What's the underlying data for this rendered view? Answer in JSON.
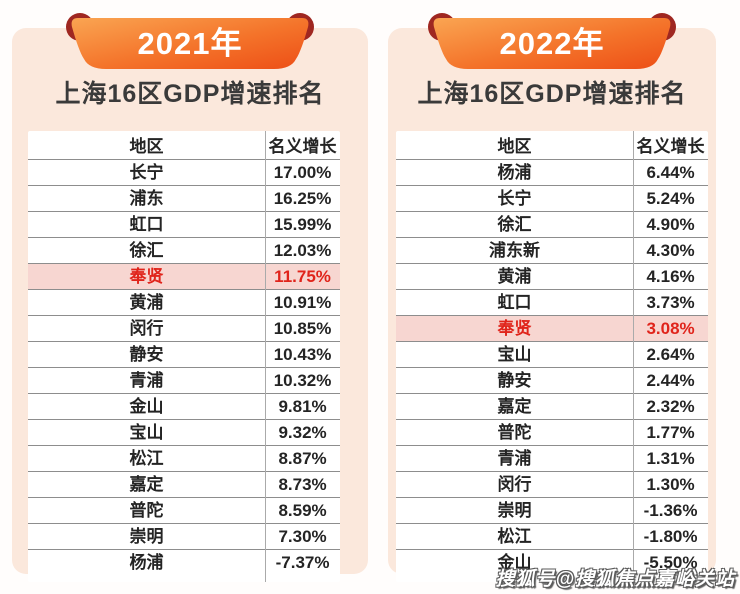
{
  "chart_data": [
    {
      "type": "table",
      "year_label": "2021年",
      "title": "上海16区GDP增速排名",
      "columns": [
        "地区",
        "名义增长"
      ],
      "rows": [
        [
          "长宁",
          "17.00%"
        ],
        [
          "浦东",
          "16.25%"
        ],
        [
          "虹口",
          "15.99%"
        ],
        [
          "徐汇",
          "12.03%"
        ],
        [
          "奉贤",
          "11.75%"
        ],
        [
          "黄浦",
          "10.91%"
        ],
        [
          "闵行",
          "10.85%"
        ],
        [
          "静安",
          "10.43%"
        ],
        [
          "青浦",
          "10.32%"
        ],
        [
          "金山",
          "9.81%"
        ],
        [
          "宝山",
          "9.32%"
        ],
        [
          "松江",
          "8.87%"
        ],
        [
          "嘉定",
          "8.73%"
        ],
        [
          "普陀",
          "8.59%"
        ],
        [
          "崇明",
          "7.30%"
        ],
        [
          "杨浦",
          "-7.37%"
        ]
      ],
      "highlight_district": "奉贤"
    },
    {
      "type": "table",
      "year_label": "2022年",
      "title": "上海16区GDP增速排名",
      "columns": [
        "地区",
        "名义增长"
      ],
      "rows": [
        [
          "杨浦",
          "6.44%"
        ],
        [
          "长宁",
          "5.24%"
        ],
        [
          "徐汇",
          "4.90%"
        ],
        [
          "浦东新",
          "4.30%"
        ],
        [
          "黄浦",
          "4.16%"
        ],
        [
          "虹口",
          "3.73%"
        ],
        [
          "奉贤",
          "3.08%"
        ],
        [
          "宝山",
          "2.64%"
        ],
        [
          "静安",
          "2.44%"
        ],
        [
          "嘉定",
          "2.32%"
        ],
        [
          "普陀",
          "1.77%"
        ],
        [
          "青浦",
          "1.31%"
        ],
        [
          "闵行",
          "1.30%"
        ],
        [
          "崇明",
          "-1.36%"
        ],
        [
          "松江",
          "-1.80%"
        ],
        [
          "金山",
          "-5.50%"
        ]
      ],
      "highlight_district": "奉贤"
    }
  ],
  "watermark": {
    "text": "搜狐号@搜狐焦点嘉峪关站"
  },
  "colors": {
    "card_background": "#fbe8dc",
    "banner_orange_start": "#faa552",
    "banner_orange_end": "#ed4e16",
    "ribbon_dark_red": "#9f2721",
    "highlight_row_background": "#f7d6d1",
    "highlight_text": "#e0241b",
    "row_line": "#8d8d8d",
    "title_text": "#3a3a3a"
  }
}
